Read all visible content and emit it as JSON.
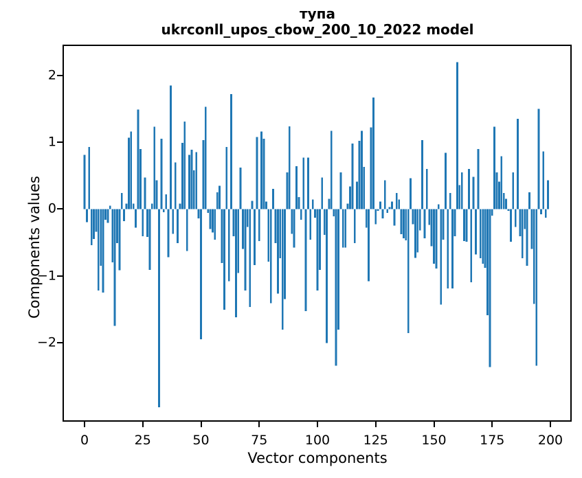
{
  "figure": {
    "title_line1": "тупа",
    "title_line2": "ukrconll_upos_cbow_200_10_2022 model",
    "xlabel": "Vector components",
    "ylabel": "Components values"
  },
  "chart_data": {
    "type": "bar",
    "title": "тупа\nukrconll_upos_cbow_200_10_2022 model",
    "xlabel": "Vector components",
    "ylabel": "Components values",
    "x_tick_values": [
      0,
      25,
      50,
      75,
      100,
      125,
      150,
      175,
      200
    ],
    "x_tick_labels": [
      "0",
      "25",
      "50",
      "75",
      "100",
      "125",
      "150",
      "175",
      "200"
    ],
    "y_tick_values": [
      2,
      1,
      0,
      -1,
      -2
    ],
    "y_tick_labels": [
      "2",
      "1",
      "0",
      "−1",
      "−2"
    ],
    "xlim": [
      -9.4,
      209.4
    ],
    "ylim": [
      -3.23,
      2.46
    ],
    "n_components": 200,
    "bar_color": "#1f77b4",
    "grid": false,
    "legend": null,
    "values": [
      0.81,
      -0.2,
      0.93,
      -0.54,
      -0.45,
      -0.34,
      -1.22,
      -0.85,
      -1.25,
      -0.16,
      -0.21,
      0.05,
      -0.8,
      -1.75,
      -0.51,
      -0.92,
      0.24,
      -0.18,
      0.08,
      1.07,
      1.16,
      0.08,
      -0.28,
      1.49,
      0.9,
      -0.41,
      0.47,
      -0.42,
      -0.91,
      0.08,
      1.23,
      0.43,
      -2.97,
      1.05,
      -0.05,
      0.22,
      -0.72,
      1.85,
      -0.37,
      0.7,
      -0.51,
      0.08,
      0.99,
      1.31,
      -0.63,
      0.81,
      0.89,
      0.58,
      0.85,
      -0.14,
      -1.95,
      1.03,
      1.53,
      -0.06,
      -0.3,
      -0.35,
      -0.46,
      0.25,
      0.35,
      -0.81,
      -1.51,
      0.93,
      -1.08,
      1.72,
      -0.41,
      -1.62,
      -0.96,
      0.62,
      -0.6,
      -1.22,
      -0.27,
      -1.47,
      0.12,
      -0.84,
      1.08,
      -0.48,
      1.16,
      1.05,
      0.11,
      -0.79,
      -1.41,
      0.3,
      -0.51,
      -1.27,
      -0.74,
      -1.81,
      -1.35,
      0.55,
      1.24,
      -0.37,
      -0.58,
      0.64,
      0.18,
      -0.16,
      0.77,
      -1.53,
      0.77,
      -0.46,
      0.14,
      -0.13,
      -1.22,
      -0.91,
      0.47,
      -0.39,
      -2.01,
      0.15,
      1.17,
      -0.11,
      -2.35,
      -1.81,
      0.55,
      -0.58,
      -0.58,
      0.08,
      0.34,
      0.98,
      -0.51,
      0.41,
      1.02,
      1.17,
      0.63,
      -0.28,
      -1.08,
      1.22,
      1.67,
      -0.23,
      -0.03,
      0.11,
      -0.14,
      0.43,
      -0.06,
      0.03,
      0.11,
      -0.25,
      0.24,
      0.14,
      -0.38,
      -0.44,
      -0.47,
      -1.86,
      0.46,
      -0.23,
      -0.73,
      -0.65,
      -0.32,
      1.03,
      -0.44,
      0.6,
      -0.24,
      -0.56,
      -0.82,
      -0.89,
      0.07,
      -1.43,
      -0.46,
      0.84,
      -1.19,
      0.24,
      -1.19,
      -0.41,
      2.2,
      0.36,
      0.55,
      -0.48,
      -0.49,
      0.6,
      -1.1,
      0.48,
      -0.68,
      0.9,
      -0.74,
      -0.82,
      -0.88,
      -1.59,
      -2.37,
      -0.1,
      1.23,
      0.55,
      0.41,
      0.79,
      0.24,
      0.15,
      -0.03,
      -0.49,
      0.55,
      -0.27,
      1.35,
      -0.41,
      -0.74,
      -0.3,
      -0.85,
      0.25,
      -0.6,
      -1.42,
      -2.35,
      1.5,
      -0.08,
      0.86,
      -0.13,
      0.43
    ]
  }
}
